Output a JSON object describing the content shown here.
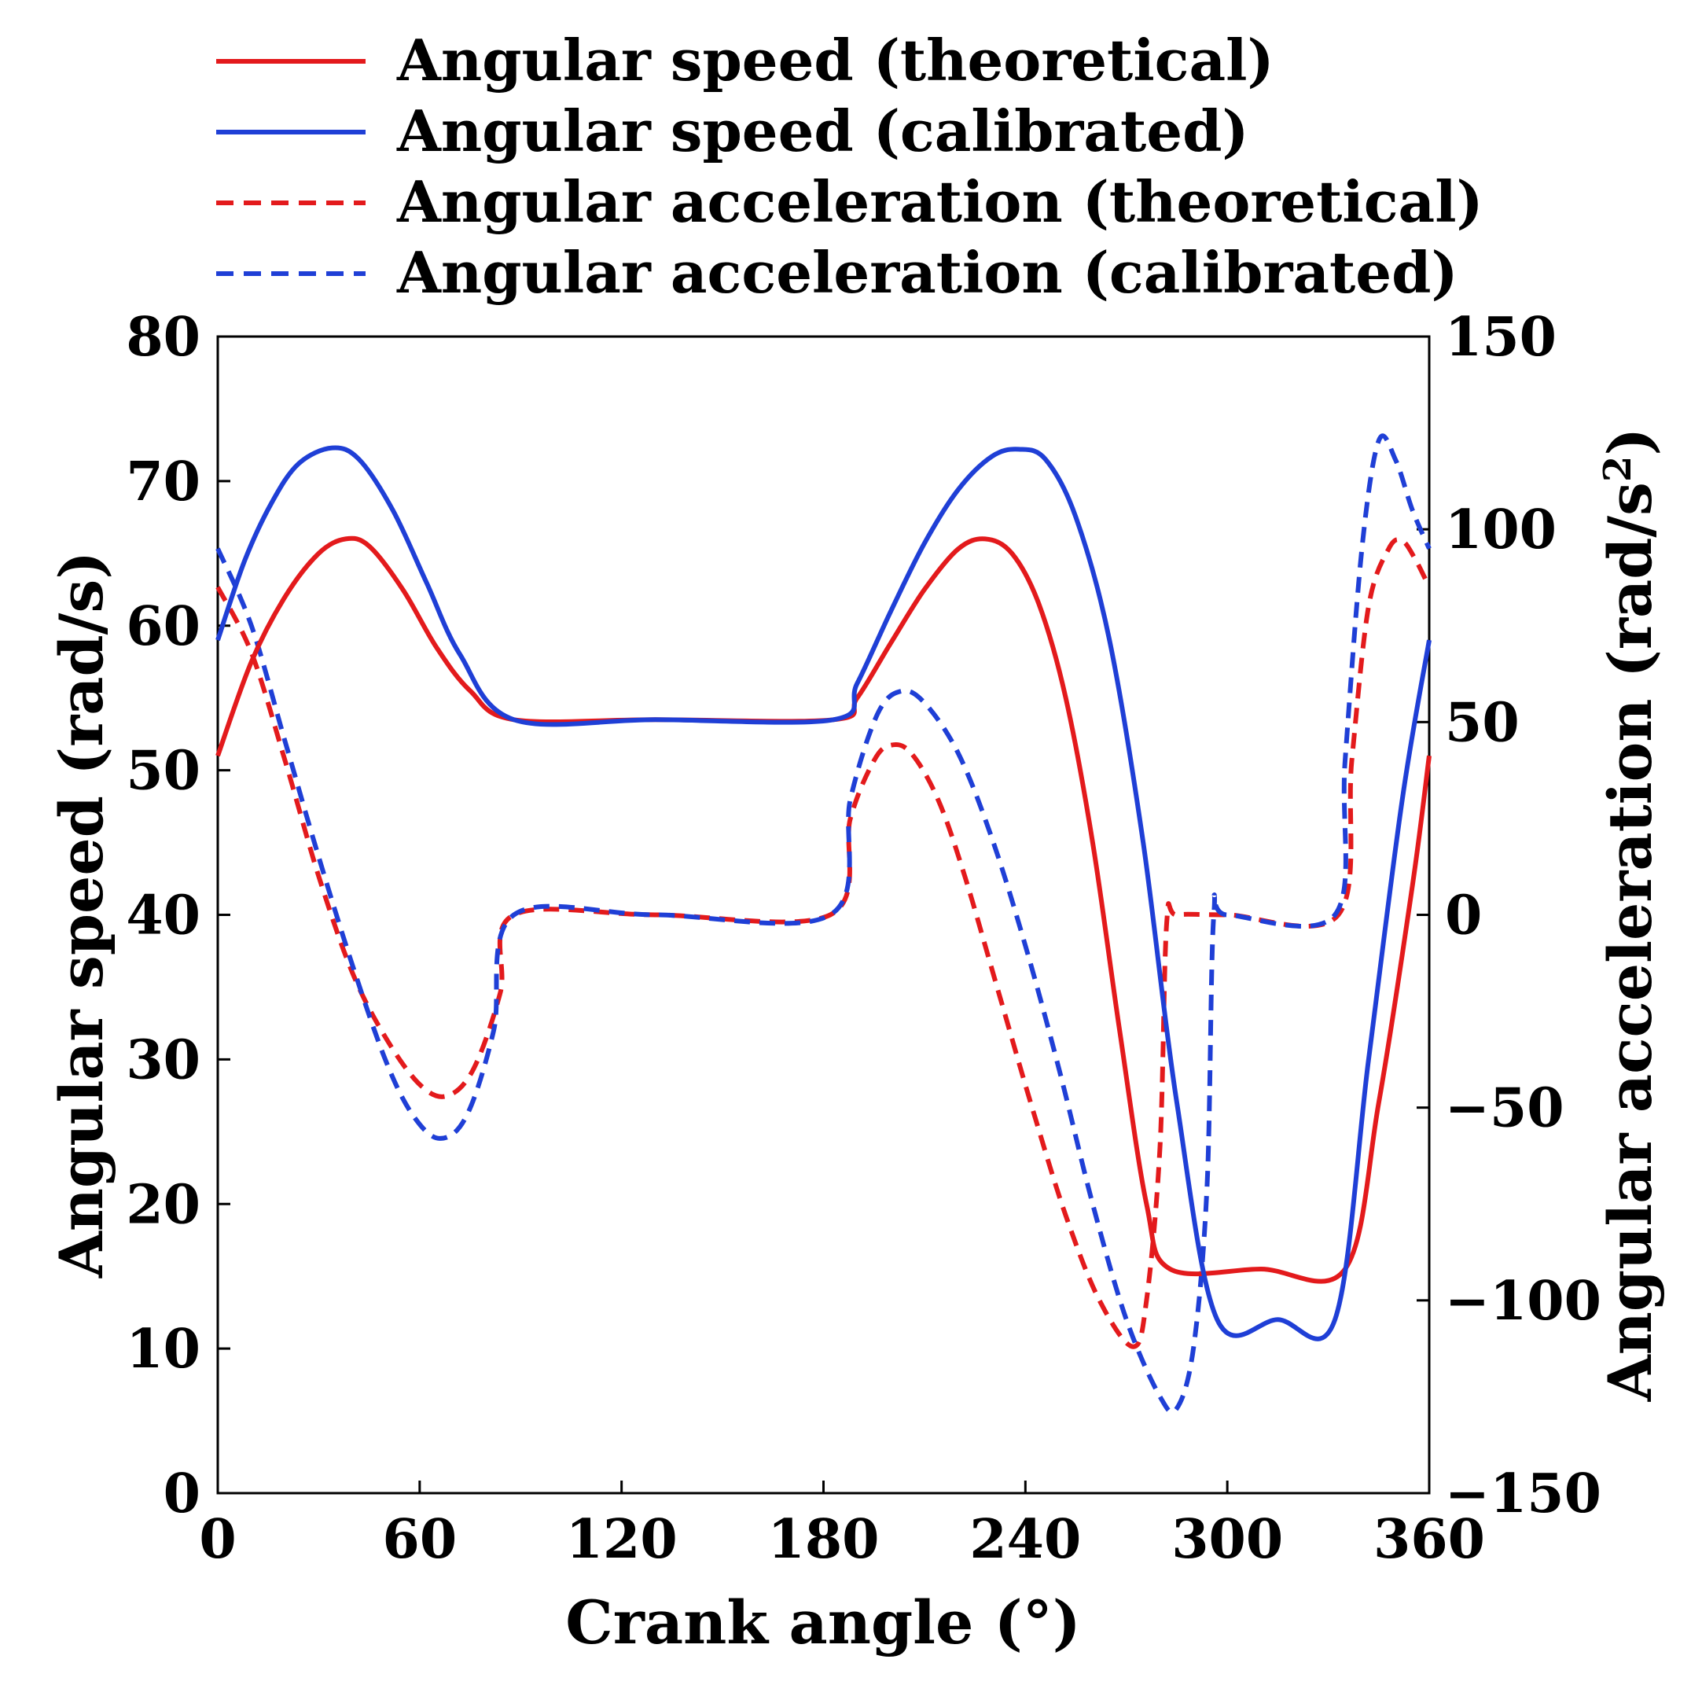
{
  "chart_data": {
    "type": "line",
    "title": "",
    "xlabel": "Crank angle (°)",
    "ylabel": "Angular speed (rad/s)",
    "y2label_base": "Angular acceleration (rad/s",
    "y2label_sup": "2",
    "y2label_close": ")",
    "xlim": [
      0,
      360
    ],
    "ylim": [
      0,
      80
    ],
    "y2lim": [
      -150,
      150
    ],
    "xticks": [
      "0",
      "60",
      "120",
      "180",
      "240",
      "300",
      "360"
    ],
    "yticks": [
      "0",
      "10",
      "20",
      "30",
      "40",
      "50",
      "60",
      "70",
      "80"
    ],
    "y2ticks": [
      "−150",
      "−100",
      "−50",
      "0",
      "50",
      "100",
      "150"
    ],
    "grid": false,
    "legend_position": "top",
    "series": [
      {
        "name": "Angular speed (theoretical)",
        "axis": "left",
        "color": "#e31a1c",
        "dash": "solid",
        "x": [
          0,
          10,
          20,
          30,
          38,
          45,
          55,
          65,
          75,
          88,
          130,
          183,
          190,
          200,
          210,
          220,
          228,
          236,
          244,
          252,
          260,
          268,
          276,
          283,
          310,
          335,
          345,
          355,
          360
        ],
        "y": [
          51,
          57.5,
          62,
          65,
          66,
          65.5,
          62.5,
          58.5,
          55.5,
          53.5,
          53.5,
          53.5,
          55,
          58.8,
          62.5,
          65.3,
          66,
          65,
          61.5,
          55,
          45,
          32,
          20,
          15.5,
          15.5,
          15.5,
          27,
          42,
          51
        ]
      },
      {
        "name": "Angular speed (calibrated)",
        "axis": "left",
        "color": "#1f3fd6",
        "dash": "solid",
        "x": [
          0,
          8,
          16,
          24,
          34,
          42,
          52,
          62,
          72,
          88,
          130,
          183,
          190,
          200,
          210,
          220,
          230,
          238,
          246,
          255,
          265,
          275,
          285,
          297,
          315,
          332,
          342,
          352,
          360
        ],
        "y": [
          59,
          64.5,
          68.5,
          71.2,
          72.3,
          71.5,
          68,
          63,
          58,
          53.5,
          53.5,
          53.5,
          56,
          61,
          65.7,
          69.4,
          71.7,
          72.2,
          71.5,
          67.5,
          59,
          45,
          27,
          12,
          12,
          12,
          30,
          48,
          59
        ]
      },
      {
        "name": "Angular acceleration (theoretical)",
        "axis": "right",
        "color": "#e31a1c",
        "dash": "dashed",
        "x": [
          0,
          10,
          20,
          30,
          40,
          50,
          60,
          68,
          76,
          84,
          88,
          130,
          182,
          188,
          195,
          200,
          206,
          214,
          222,
          232,
          242,
          252,
          262,
          272,
          276,
          280,
          282,
          285,
          300,
          333,
          337,
          342,
          348,
          352,
          356,
          360
        ],
        "y": [
          85,
          68,
          40,
          10,
          -15,
          -32,
          -44,
          -47,
          -40,
          -20,
          0,
          0,
          0,
          25,
          40,
          44,
          42,
          30,
          10,
          -20,
          -50,
          -78,
          -100,
          -112,
          -100,
          -60,
          -2,
          0,
          0,
          0,
          40,
          80,
          95,
          97,
          92,
          85
        ],
        "y_axis": "right"
      },
      {
        "name": "Angular acceleration (calibrated)",
        "axis": "right",
        "color": "#1f3fd6",
        "dash": "dashed",
        "x": [
          0,
          10,
          20,
          30,
          40,
          50,
          58,
          66,
          74,
          82,
          88,
          130,
          182,
          188,
          196,
          203,
          210,
          220,
          230,
          240,
          250,
          260,
          270,
          280,
          285,
          290,
          294,
          296,
          300,
          332,
          335,
          340,
          345,
          350,
          355,
          360
        ],
        "y": [
          95,
          75,
          45,
          15,
          -13,
          -38,
          -52,
          -58,
          -52,
          -30,
          0,
          0,
          0,
          30,
          52,
          58,
          55,
          42,
          20,
          -8,
          -40,
          -75,
          -105,
          -125,
          -128,
          -112,
          -70,
          0,
          0,
          0,
          40,
          95,
          123,
          118,
          105,
          95
        ]
      }
    ]
  }
}
